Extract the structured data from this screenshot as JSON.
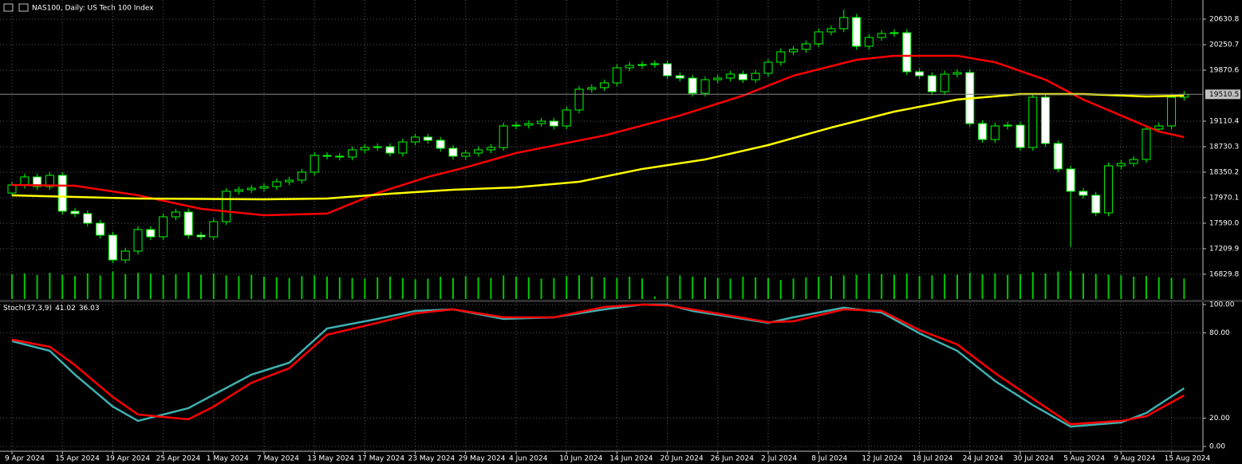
{
  "chart_data": {
    "type": "candlestick",
    "title": "NAS100, Daily:  US Tech 100 Index",
    "categories": [
      "9 Apr 2024",
      null,
      null,
      null,
      "15 Apr 2024",
      null,
      null,
      null,
      "19 Apr 2024",
      null,
      null,
      null,
      "25 Apr 2024",
      null,
      null,
      null,
      "1 May 2024",
      null,
      null,
      null,
      "7 May 2024",
      null,
      null,
      null,
      "13 May 2024",
      null,
      null,
      null,
      "17 May 2024",
      null,
      null,
      null,
      "23 May 2024",
      null,
      null,
      null,
      "29 May 2024",
      null,
      null,
      null,
      "4 Jun 2024",
      null,
      null,
      null,
      "10 Jun 2024",
      null,
      null,
      null,
      "14 Jun 2024",
      null,
      null,
      null,
      "20 Jun 2024",
      null,
      null,
      null,
      "26 Jun 2024",
      null,
      null,
      null,
      "2 Jul 2024",
      null,
      null,
      null,
      "8 Jul 2024",
      null,
      null,
      null,
      "12 Jul 2024",
      null,
      null,
      null,
      "18 Jul 2024",
      null,
      null,
      null,
      "24 Jul 2024",
      null,
      null,
      null,
      "30 Jul 2024",
      null,
      null,
      null,
      "5 Aug 2024",
      null,
      null,
      null,
      "9 Aug 2024",
      null,
      null,
      null,
      "15 Aug 2024",
      null
    ],
    "open": [
      18040,
      18160,
      18279,
      18136,
      18303,
      17768,
      17732,
      17590,
      17412,
      17043,
      17174,
      17495,
      17388,
      17685,
      17756,
      17412,
      17388,
      17613,
      18065,
      18089,
      18112,
      18136,
      18207,
      18231,
      18350,
      18600,
      18588,
      18576,
      18683,
      18718,
      18730,
      18635,
      18801,
      18873,
      18825,
      18706,
      18588,
      18635,
      18683,
      18718,
      19039,
      19051,
      19075,
      19110,
      19039,
      19277,
      19586,
      19610,
      19681,
      19906,
      19942,
      19954,
      19966,
      19788,
      19752,
      19526,
      19728,
      19752,
      19811,
      19728,
      19823,
      19989,
      20144,
      20180,
      20263,
      20441,
      20488,
      20655,
      20227,
      20358,
      20417,
      20429,
      19847,
      19788,
      19550,
      19811,
      19835,
      19075,
      18837,
      19039,
      19051,
      18718,
      19467,
      18778,
      18398,
      18065,
      18006,
      17744,
      18445,
      18481,
      18540,
      18992,
      19039,
      19467
    ],
    "high": [
      18210,
      18329,
      18329,
      18353,
      18353,
      17818,
      17782,
      17640,
      17462,
      17224,
      17545,
      17545,
      17735,
      17806,
      17806,
      17462,
      17663,
      18115,
      18139,
      18162,
      18186,
      18257,
      18281,
      18400,
      18650,
      18650,
      18638,
      18733,
      18768,
      18780,
      18780,
      18851,
      18923,
      18923,
      18875,
      18756,
      18685,
      18733,
      18768,
      19089,
      19101,
      19125,
      19160,
      19160,
      19327,
      19636,
      19660,
      19731,
      19956,
      19992,
      20004,
      20016,
      20016,
      19838,
      19802,
      19778,
      19802,
      19861,
      19861,
      19873,
      20039,
      20194,
      20230,
      20313,
      20491,
      20538,
      20774,
      20705,
      20408,
      20467,
      20479,
      20479,
      19897,
      19838,
      19861,
      19885,
      19885,
      19125,
      19089,
      19101,
      19101,
      19517,
      19517,
      18828,
      18448,
      18115,
      18056,
      18495,
      18531,
      18590,
      19042,
      19089,
      19517,
      19560
    ],
    "low": [
      17990,
      18110,
      18086,
      18086,
      17718,
      17682,
      17540,
      17362,
      16993,
      16993,
      17124,
      17338,
      17338,
      17635,
      17362,
      17338,
      17338,
      17563,
      18015,
      18039,
      18062,
      18086,
      18157,
      18181,
      18300,
      18538,
      18526,
      18526,
      18633,
      18668,
      18585,
      18585,
      18751,
      18775,
      18656,
      18538,
      18538,
      18585,
      18633,
      18668,
      18989,
      19001,
      19025,
      18989,
      18989,
      19227,
      19536,
      19560,
      19631,
      19856,
      19892,
      19904,
      19738,
      19702,
      19476,
      19476,
      19678,
      19702,
      19678,
      19678,
      19773,
      19939,
      20094,
      20130,
      20213,
      20391,
      20438,
      20177,
      20177,
      20308,
      20367,
      19797,
      19738,
      19500,
      19500,
      19761,
      19025,
      18787,
      18787,
      18989,
      18668,
      18668,
      18728,
      18348,
      17233,
      17956,
      17694,
      17694,
      18395,
      18431,
      18490,
      18942,
      18989,
      19417
    ],
    "close": [
      18160,
      18279,
      18136,
      18303,
      17768,
      17732,
      17590,
      17412,
      17043,
      17174,
      17495,
      17388,
      17685,
      17756,
      17412,
      17388,
      17613,
      18065,
      18089,
      18112,
      18136,
      18207,
      18231,
      18350,
      18600,
      18588,
      18576,
      18683,
      18718,
      18730,
      18635,
      18801,
      18873,
      18825,
      18706,
      18588,
      18635,
      18683,
      18718,
      19039,
      19051,
      19075,
      19110,
      19039,
      19277,
      19586,
      19610,
      19681,
      19906,
      19942,
      19954,
      19966,
      19788,
      19752,
      19526,
      19728,
      19752,
      19811,
      19728,
      19823,
      19989,
      20144,
      20180,
      20263,
      20441,
      20488,
      20655,
      20227,
      20358,
      20417,
      20429,
      19847,
      19788,
      19550,
      19811,
      19835,
      19075,
      18837,
      19039,
      19051,
      18718,
      19467,
      18778,
      18398,
      18065,
      18006,
      17744,
      18445,
      18481,
      18540,
      18992,
      19039,
      19467,
      19510.5
    ],
    "up_color": "#000000",
    "down_color": "#ffffff",
    "wick_color": "#00ff00",
    "ylim": [
      16461,
      20916
    ],
    "yticks": [
      20630.8,
      20250.7,
      19870.6,
      19110.4,
      18730.3,
      18350.2,
      {
        "value": 17970.1,
        "label": "17970.1"
      },
      {
        "value": 17590,
        "label": "17590.0"
      },
      {
        "value": 17209.9,
        "label": "17209.9"
      },
      16829.8
    ],
    "current_price": 19510.5,
    "grid": true,
    "lines": [
      {
        "color": "#ff0000",
        "x": [
          0,
          5,
          10,
          15,
          20,
          25,
          29,
          33,
          36,
          40,
          47,
          53,
          58,
          62,
          67,
          70,
          75,
          78,
          82,
          85,
          88,
          91,
          93
        ],
        "values": [
          18160,
          18148,
          18006,
          17804,
          17709,
          17733,
          18041,
          18279,
          18422,
          18636,
          18897,
          19194,
          19491,
          19788,
          20025,
          20085,
          20085,
          19989,
          19728,
          19432,
          19194,
          18956,
          18873
        ]
      },
      {
        "color": "#ffff00",
        "x": [
          0,
          10,
          20,
          25,
          30,
          35,
          40,
          45,
          50,
          55,
          60,
          65,
          70,
          75,
          80,
          85,
          90,
          93
        ],
        "values": [
          18006,
          17958,
          17946,
          17958,
          18029,
          18089,
          18124,
          18207,
          18398,
          18540,
          18754,
          19015,
          19253,
          19432,
          19514,
          19514,
          19479,
          19491
        ]
      }
    ],
    "volume": {
      "color": "#00c800",
      "vlim": [
        0,
        100
      ],
      "values": [
        78,
        80,
        75,
        82,
        76,
        72,
        80,
        74,
        86,
        78,
        82,
        80,
        75,
        78,
        84,
        76,
        80,
        74,
        72,
        76,
        70,
        68,
        66,
        72,
        74,
        70,
        68,
        66,
        64,
        68,
        70,
        66,
        62,
        64,
        70,
        66,
        72,
        68,
        66,
        74,
        70,
        68,
        64,
        66,
        72,
        74,
        70,
        68,
        66,
        70,
        64,
        8,
        72,
        74,
        70,
        68,
        66,
        64,
        70,
        68,
        66,
        60,
        64,
        68,
        70,
        72,
        74,
        76,
        80,
        78,
        76,
        80,
        72,
        74,
        78,
        76,
        82,
        78,
        80,
        76,
        78,
        84,
        80,
        86,
        88,
        80,
        78,
        76,
        74,
        70,
        72,
        68,
        66,
        64
      ]
    },
    "oscillator": {
      "type": "line",
      "title": "Stoch(37,3,9)",
      "ylim": [
        0,
        100
      ],
      "yticks": [
        {
          "value": 100,
          "label": "100.00"
        },
        {
          "value": 80,
          "label": "80.00"
        },
        {
          "value": 20,
          "label": "20.00"
        },
        {
          "value": 0,
          "label": "0.00"
        }
      ],
      "series": [
        {
          "color": "#3fb0b0",
          "x": [
            0,
            3,
            5,
            8,
            10,
            14,
            16,
            19,
            22,
            25,
            29,
            32,
            35,
            39,
            43,
            47,
            50,
            52,
            54,
            60,
            62,
            66,
            69,
            72,
            75,
            78,
            81,
            84,
            88,
            90,
            93
          ],
          "values": [
            74.2,
            67.4,
            50.6,
            28.1,
            18,
            27,
            36.5,
            50.6,
            59,
            83.1,
            89.9,
            95.5,
            96.6,
            89.9,
            91,
            96.6,
            100,
            100,
            95.5,
            87.1,
            91,
            97.8,
            94.4,
            79.8,
            67.4,
            46.1,
            29.2,
            14,
            16.9,
            23.6,
            41.02
          ]
        },
        {
          "color": "#ff0000",
          "x": [
            0,
            3,
            5,
            8,
            10,
            14,
            16,
            19,
            22,
            25,
            29,
            32,
            35,
            39,
            43,
            47,
            50,
            52,
            54,
            60,
            62,
            66,
            69,
            72,
            75,
            78,
            81,
            84,
            88,
            90,
            93
          ],
          "values": [
            75.3,
            70.2,
            57.3,
            34.8,
            22.5,
            19.1,
            28.1,
            44.9,
            55.1,
            78.7,
            87.1,
            93.8,
            96.6,
            91,
            91,
            98.3,
            100,
            99.4,
            96.6,
            87.6,
            88.2,
            96.6,
            95.5,
            82,
            71.9,
            51.7,
            33.7,
            15.7,
            18,
            21.3,
            36.03
          ]
        }
      ]
    }
  }
}
